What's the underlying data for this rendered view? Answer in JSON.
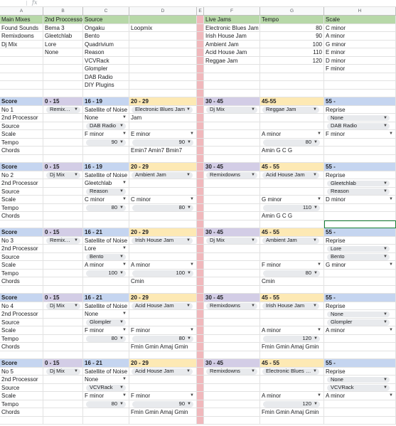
{
  "formula_bar": {
    "fx_label": "fx"
  },
  "columns": [
    "A",
    "B",
    "C",
    "D",
    "E",
    "F",
    "G",
    "H"
  ],
  "top_table": {
    "headers": [
      "Main Mixes",
      "2nd Proccessor",
      "Source",
      "",
      "",
      "Live Jams",
      "Tempo",
      "Scale"
    ],
    "rows": [
      [
        "Found Sounds",
        "Bema 3",
        "Ongaku",
        "Loopmix",
        "",
        "Electronic Blues Jam",
        "80",
        "C minor"
      ],
      [
        "Remixdowns",
        "Gleetchlab",
        "Bento",
        "",
        "",
        "Irish House Jam",
        "90",
        "A minor"
      ],
      [
        "Dj Mix",
        "Lore",
        "Quadrivium",
        "",
        "",
        "Ambient Jam",
        "100",
        "G minor"
      ],
      [
        "",
        "None",
        "Reason",
        "",
        "",
        "Acid House Jam",
        "110",
        "E minor"
      ],
      [
        "",
        "",
        "VCVRack",
        "",
        "",
        "Reggae Jam",
        "120",
        "D minor"
      ],
      [
        "",
        "",
        "Glompler",
        "",
        "",
        "",
        "",
        "F minor"
      ],
      [
        "",
        "",
        "DAB Radio",
        "",
        "",
        "",
        "",
        ""
      ],
      [
        "",
        "",
        "DIY Plugins",
        "",
        "",
        "",
        "",
        ""
      ]
    ]
  },
  "row_labels": [
    "2nd Processor",
    "Source",
    "Scale",
    "Tempo",
    "Chords"
  ],
  "score_label": "Score",
  "blocks": [
    {
      "no": "No 1",
      "ranges": [
        "0 - 15",
        "16 - 19",
        "20 - 29",
        "30 - 45",
        "45-55",
        "55 -"
      ],
      "b1": "Remix…",
      "c1": "Satellite of Noise",
      "d1": "Electronic Blues Jam",
      "f1": "Dj Mix",
      "g1": "Reggae Jam",
      "h1": "Reprise",
      "c2": "None",
      "d2": "Jam",
      "h2": "None",
      "c3": "DAB Radio",
      "h3": "DAB Radio",
      "c4": "F minor",
      "d4": "E minor",
      "g4": "A minor",
      "h4": "F minor",
      "c5": "90",
      "d5": "90",
      "g5": "80",
      "d6": "Emin7 Amin7 Bmin7",
      "g6": "Amin G C G"
    },
    {
      "no": "No 2",
      "ranges": [
        "0 - 15",
        "16 - 19",
        "20 - 29",
        "30 - 45",
        "45 - 55",
        "55 -"
      ],
      "b1": "Dj Mix",
      "c1": "Satellite of Noise",
      "d1": "Ambient Jam",
      "f1": "Remixdowns",
      "g1": "Acid House Jam",
      "h1": "Reprise",
      "c2": "Gleetchlab",
      "d2": "",
      "h2": "Gleetchlab",
      "c3": "Reason",
      "h3": "Reason",
      "c4": "C minor",
      "d4": "C minor",
      "g4": "G minor",
      "h4": "D minor",
      "c5": "80",
      "d5": "80",
      "g5": "110",
      "d6": "",
      "g6": "Amin G C G"
    },
    {
      "no": "No 3",
      "ranges": [
        "0 - 15",
        "16 - 21",
        "20 - 29",
        "30 - 45",
        "45 - 55",
        "55 -"
      ],
      "b1": "Remix…",
      "c1": "Satellite of Noise",
      "d1": "Irish House Jam",
      "f1": "Dj Mix",
      "g1": "Ambient Jam",
      "h1": "Reprise",
      "c2": "Lore",
      "d2": "",
      "h2": "Lore",
      "c3": "Bento",
      "h3": "Bento",
      "c4": "A minor",
      "d4": "A minor",
      "g4": "F minor",
      "h4": "G minor",
      "c5": "100",
      "d5": "100",
      "g5": "80",
      "d6": "Cmin",
      "g6": "Cmin"
    },
    {
      "no": "No 4",
      "ranges": [
        "0 - 15",
        "16 - 21",
        "20 - 29",
        "30 - 45",
        "45 - 55",
        "55 -"
      ],
      "b1": "Dj Mix",
      "c1": "Satellite of Noise",
      "d1": "Acid House Jam",
      "f1": "Remixdowns",
      "g1": "Irish House Jam",
      "h1": "Reprise",
      "c2": "None",
      "d2": "",
      "h2": "None",
      "c3": "Glompler",
      "h3": "Glompler",
      "c4": "F minor",
      "d4": "F minor",
      "g4": "A minor",
      "h4": "A minor",
      "c5": "80",
      "d5": "80",
      "g5": "120",
      "d6": "Fmin Gmin Amaj Gmin",
      "g6": "Fmin Gmin Amaj Gmin"
    },
    {
      "no": "No 5",
      "ranges": [
        "0 - 15",
        "16 - 21",
        "20 - 29",
        "30 - 45",
        "45 - 55",
        "55 -"
      ],
      "b1": "Dj Mix",
      "c1": "Satellite of Noise",
      "d1": "Acid House Jam",
      "f1": "Remixdowns",
      "g1": "Electronic Blues …",
      "h1": "Reprise",
      "c2": "None",
      "d2": "",
      "h2": "None",
      "c3": "VCVRack",
      "h3": "VCVRack",
      "c4": "F minor",
      "d4": "F minor",
      "g4": "A minor",
      "h4": "A minor",
      "c5": "80",
      "d5": "90",
      "g5": "120",
      "d6": "Fmin Gmin Amaj Gmin",
      "g6": "Fmin Gmin Amaj Gmin"
    }
  ],
  "colors": {
    "green": "#b7d8a8",
    "blue": "#c5d5f0",
    "purple": "#d3cde6",
    "yellow": "#fde9b4",
    "pink": "#f0b8bc",
    "chip": "#e8eaed",
    "selection": "#188038"
  }
}
